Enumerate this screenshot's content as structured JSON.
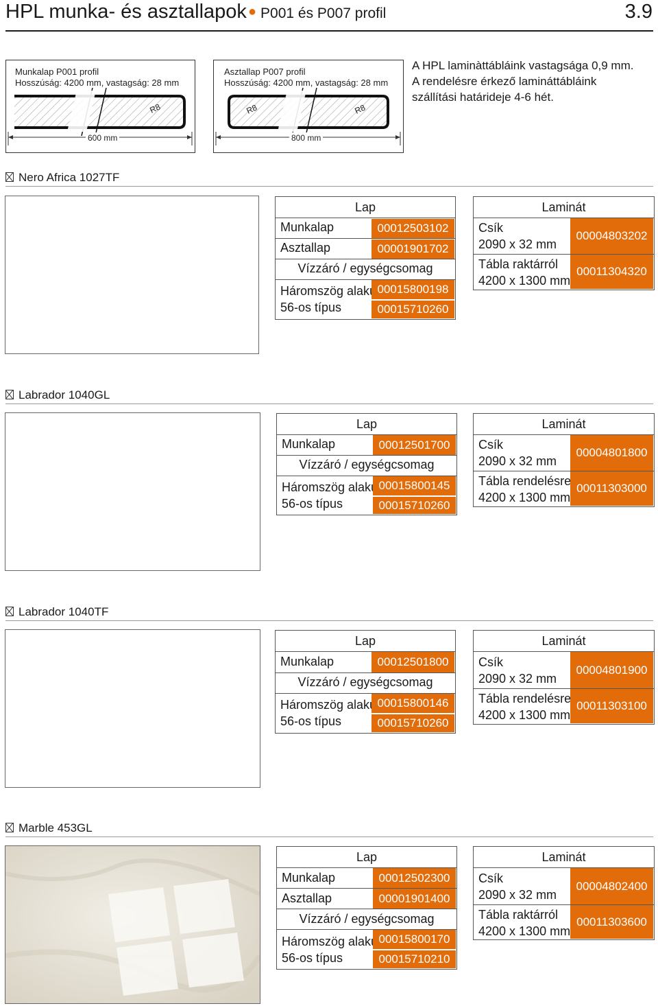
{
  "header": {
    "title": "HPL munka- és asztallapok",
    "subtitle": "P001 és P007 profil",
    "page_number": "3.9"
  },
  "profiles": [
    {
      "line1": "Munkalap P001 profil",
      "line2": "Hosszúság: 4200 mm, vastagság: 28 mm",
      "radius_right": "R8",
      "width_label": "600 mm"
    },
    {
      "line1": "Asztallap P007 profil",
      "line2": "Hosszúság: 4200 mm, vastagság: 28 mm",
      "radius_left": "R8",
      "radius_right": "R8",
      "width_label": "800 mm"
    }
  ],
  "note": {
    "line1": "A HPL laminàttábláink vastagsága 0,9 mm.",
    "line2": "A rendelésre érkező lamináttábláink",
    "line3": "szállítási határideje 4-6 hét."
  },
  "sections": [
    {
      "name": "Nero Africa 1027TF",
      "lap_header": "Lap",
      "rows": [
        {
          "label": "Munkalap",
          "code": "00012503102"
        },
        {
          "label": "Asztallap",
          "code": "00001901702"
        }
      ],
      "vizzaro": "Vízzáró / egységcsomag",
      "triangle_label": "Háromszög alakú",
      "triangle_code": "00015800198",
      "type56_label": "56-os típus",
      "type56_code": "00015710260",
      "laminat_header": "Laminát",
      "strip_label": "Csík",
      "strip_size": "2090 x 32 mm",
      "strip_code": "00004803202",
      "table_label": "Tábla raktárról",
      "table_size": "4200 x 1300 mm",
      "table_code": "00011304320"
    },
    {
      "name": "Labrador 1040GL",
      "lap_header": "Lap",
      "rows": [
        {
          "label": "Munkalap",
          "code": "00012501700"
        }
      ],
      "vizzaro": "Vízzáró / egységcsomag",
      "triangle_label": "Háromszög alakú",
      "triangle_code": "00015800145",
      "type56_label": "56-os típus",
      "type56_code": "00015710260",
      "laminat_header": "Laminát",
      "strip_label": "Csík",
      "strip_size": "2090 x 32 mm",
      "strip_code": "00004801800",
      "table_label": "Tábla rendelésre",
      "table_size": "4200 x 1300 mm",
      "table_code": "00011303000"
    },
    {
      "name": "Labrador 1040TF",
      "lap_header": "Lap",
      "rows": [
        {
          "label": "Munkalap",
          "code": "00012501800"
        }
      ],
      "vizzaro": "Vízzáró / egységcsomag",
      "triangle_label": "Háromszög alakú",
      "triangle_code": "00015800146",
      "type56_label": "56-os típus",
      "type56_code": "00015710260",
      "laminat_header": "Laminát",
      "strip_label": "Csík",
      "strip_size": "2090 x 32 mm",
      "strip_code": "00004801900",
      "table_label": "Tábla rendelésre",
      "table_size": "4200 x 1300 mm",
      "table_code": "00011303100"
    },
    {
      "name": "Marble 453GL",
      "lap_header": "Lap",
      "rows": [
        {
          "label": "Munkalap",
          "code": "00012502300"
        },
        {
          "label": "Asztallap",
          "code": "00001901400"
        }
      ],
      "vizzaro": "Vízzáró / egységcsomag",
      "triangle_label": "Háromszög alakú",
      "triangle_code": "00015800170",
      "type56_label": "56-os típus",
      "type56_code": "00015710210",
      "laminat_header": "Laminát",
      "strip_label": "Csík",
      "strip_size": "2090 x 32 mm",
      "strip_code": "00004802400",
      "table_label": "Tábla raktárról",
      "table_size": "4200 x 1300 mm",
      "table_code": "00011303600"
    }
  ],
  "colors": {
    "accent": "#e36c0a",
    "text": "#1a1a1a"
  }
}
